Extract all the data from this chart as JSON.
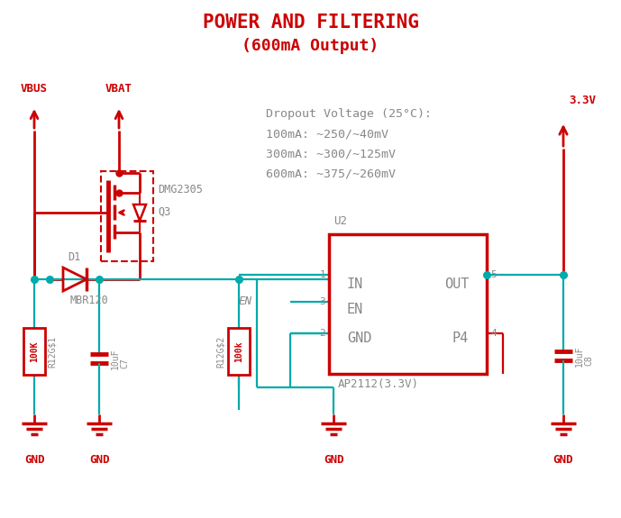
{
  "title1": "POWER AND FILTERING",
  "title2": "(600mA Output)",
  "title_color": "#cc0000",
  "wire_color": "#00aaaa",
  "red_color": "#cc0000",
  "gray_color": "#888888",
  "bg_color": "#ffffff",
  "dropout_text": "Dropout Voltage (25°C):",
  "dropout_lines": [
    "100mA: ~250/~40mV",
    "300mA: ~300/~125mV",
    "600mA: ~375/~260mV"
  ],
  "figsize": [
    6.89,
    5.75
  ],
  "dpi": 100,
  "wire_lw": 1.6,
  "comp_lw": 2.0
}
